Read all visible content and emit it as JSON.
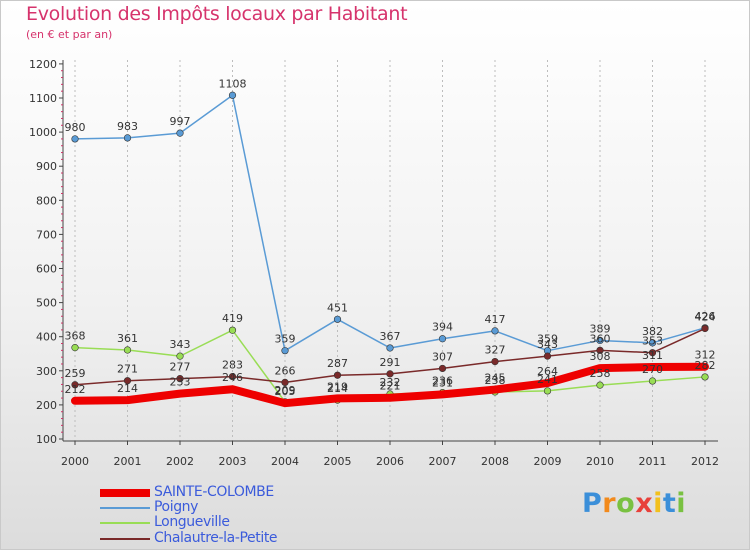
{
  "chart_data": {
    "type": "line",
    "title": "Evolution des Impôts locaux par Habitant",
    "subtitle": "(en € et par an)",
    "xlabel": "",
    "ylabel": "",
    "categories": [
      "2000",
      "2001",
      "2002",
      "2003",
      "2004",
      "2005",
      "2006",
      "2007",
      "2008",
      "2009",
      "2010",
      "2011",
      "2012"
    ],
    "y_ticks": [
      "100",
      "200",
      "300",
      "400",
      "500",
      "600",
      "700",
      "800",
      "900",
      "1000",
      "1100",
      "1200"
    ],
    "ylim": [
      100,
      1200
    ],
    "grid": "vertical dashed",
    "legend_position": "bottom-left",
    "series": [
      {
        "name": "SAINTE-COLOMBE",
        "color": "#ee0000",
        "width": 8,
        "marker": false,
        "values": [
          212,
          214,
          233,
          246,
          205,
          219,
          221,
          231,
          245,
          264,
          308,
          311,
          312
        ],
        "labels": [
          "212",
          "214",
          "233",
          "246",
          "205",
          "219",
          "221",
          "231",
          "245",
          "264",
          "308",
          "311",
          "312"
        ]
      },
      {
        "name": "Poigny",
        "color": "#5a9bd5",
        "width": 1.5,
        "marker": true,
        "values": [
          980,
          983,
          997,
          1108,
          359,
          451,
          367,
          394,
          417,
          359,
          389,
          382,
          426
        ],
        "labels": [
          "980",
          "983",
          "997",
          "1108",
          "359",
          "451",
          "367",
          "394",
          "417",
          "359",
          "389",
          "382",
          "426"
        ]
      },
      {
        "name": "Longueville",
        "color": "#99dd55",
        "width": 1.5,
        "marker": true,
        "values": [
          368,
          361,
          343,
          419,
          209,
          214,
          232,
          236,
          238,
          241,
          258,
          270,
          282
        ],
        "labels": [
          "368",
          "361",
          "343",
          "419",
          "209",
          "214",
          "232",
          "236",
          "238",
          "241",
          "258",
          "270",
          "282"
        ]
      },
      {
        "name": "Chalautre-la-Petite",
        "color": "#7a2a2a",
        "width": 1.5,
        "marker": true,
        "values": [
          259,
          271,
          277,
          283,
          266,
          287,
          291,
          307,
          327,
          343,
          360,
          353,
          424
        ],
        "labels": [
          "259",
          "271",
          "277",
          "283",
          "266",
          "287",
          "291",
          "307",
          "327",
          "343",
          "360",
          "353",
          "424"
        ]
      }
    ]
  },
  "logo": {
    "letters": [
      "P",
      "r",
      "o",
      "x",
      "i",
      "t",
      "i"
    ],
    "colors": [
      "#3b8fd9",
      "#f28a1c",
      "#79c141",
      "#e8403a",
      "#f2c01c",
      "#3b8fd9",
      "#79c141"
    ]
  }
}
